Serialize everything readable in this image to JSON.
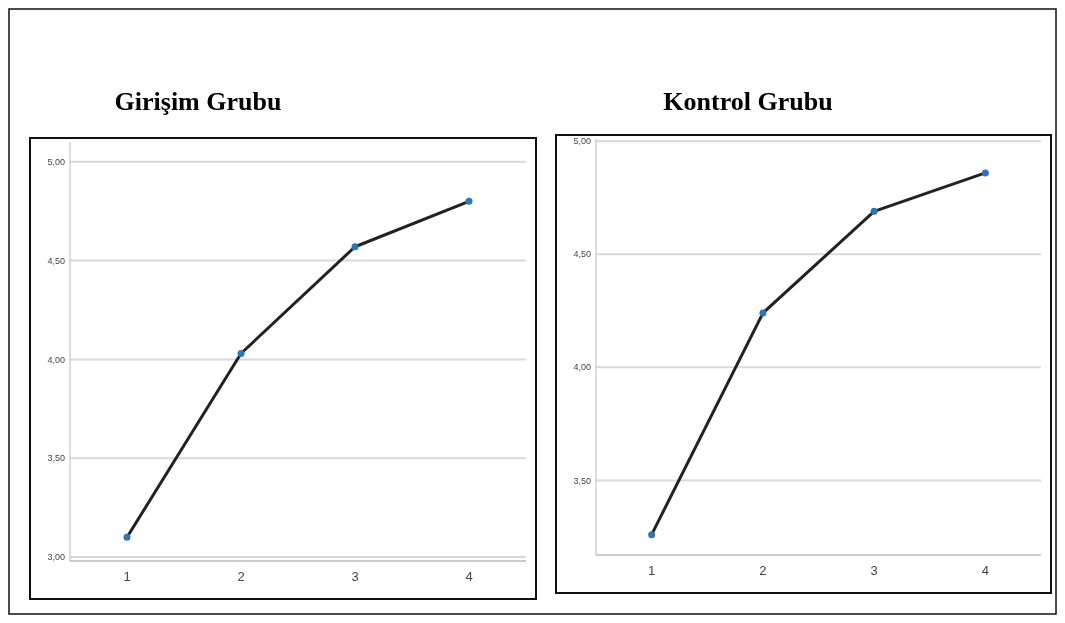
{
  "chart_data": [
    {
      "type": "line",
      "title": "Girişim Grubu",
      "categories": [
        "1",
        "2",
        "3",
        "4"
      ],
      "series": [
        {
          "color": "#222222",
          "values": [
            3.1,
            4.03,
            4.57,
            4.8
          ]
        }
      ],
      "ylim": [
        2.98,
        5.1
      ],
      "yticks": [
        {
          "value": 3,
          "label": "3,00"
        },
        {
          "value": 3.5,
          "label": "3,50"
        },
        {
          "value": 4,
          "label": "4,00"
        },
        {
          "value": 4.5,
          "label": "4,50"
        },
        {
          "value": 5,
          "label": "5,00"
        }
      ],
      "grid": "y",
      "marker": "circle",
      "line_style": "solid"
    },
    {
      "type": "line",
      "title": "Kontrol Grubu",
      "categories": [
        "1",
        "2",
        "3",
        "4"
      ],
      "series": [
        {
          "color": "#222222",
          "values": [
            3.26,
            4.24,
            4.69,
            4.86
          ]
        }
      ],
      "ylim": [
        3.17,
        5.01
      ],
      "yticks": [
        {
          "value": 3.5,
          "label": "3,50"
        },
        {
          "value": 4,
          "label": "4,00"
        },
        {
          "value": 4.5,
          "label": "4,50"
        },
        {
          "value": 5,
          "label": "5,00"
        }
      ],
      "grid": "y",
      "marker": "circle",
      "line_style": "solid"
    }
  ]
}
